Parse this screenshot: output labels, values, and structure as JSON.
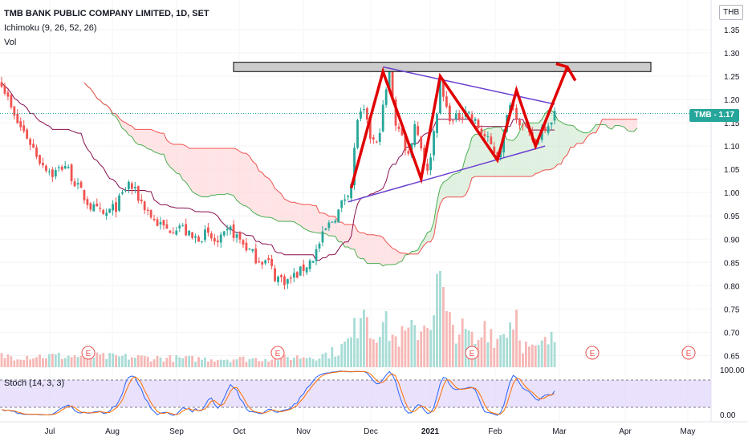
{
  "header": {
    "title": "TMB BANK PUBLIC COMPANY LIMITED, 1D, SET",
    "ichimoku_label": "Ichimoku (9, 26, 52, 26)",
    "volume_label": "Vol",
    "currency": "THB",
    "last_price_tag": "TMB - 1.17"
  },
  "stoch": {
    "label": "Stoch (14, 3, 3)",
    "ticks": [
      "100.00",
      "0.00"
    ]
  },
  "colors": {
    "up": "#26a69a",
    "down": "#ef5350",
    "conv_line": "#880e4f",
    "span_a": "#4caf50",
    "span_b": "#ef5350",
    "cloud_green": "#c8e6c9",
    "cloud_red": "#ffcdd2",
    "pattern": "#e00000",
    "trendline": "#6a3fcf",
    "stoch_band": "#e1d5fb",
    "stoch_k": "#2962ff",
    "stoch_d": "#ff6d00",
    "zone_fill": "#cccccc"
  },
  "chart_data": {
    "type": "candlestick",
    "ylim": [
      0.63,
      1.4
    ],
    "y_ticks": [
      1.35,
      1.3,
      1.25,
      1.2,
      1.15,
      1.1,
      1.05,
      1.0,
      0.95,
      0.9,
      0.85,
      0.8,
      0.75,
      0.7,
      0.65
    ],
    "x_ticks": [
      "Jul",
      "Aug",
      "Sep",
      "Oct",
      "Nov",
      "Dec",
      "2021",
      "Feb",
      "Mar",
      "Apr",
      "May"
    ],
    "last_price": 1.17,
    "close_path": [
      [
        0,
        1.24
      ],
      [
        4,
        1.16
      ],
      [
        8,
        1.12
      ],
      [
        12,
        1.07
      ],
      [
        16,
        1.04
      ],
      [
        20,
        1.06
      ],
      [
        24,
        1.01
      ],
      [
        28,
        0.97
      ],
      [
        32,
        0.95
      ],
      [
        36,
        0.97
      ],
      [
        40,
        1.02
      ],
      [
        44,
        0.98
      ],
      [
        48,
        0.94
      ],
      [
        52,
        0.92
      ],
      [
        56,
        0.93
      ],
      [
        60,
        0.9
      ],
      [
        64,
        0.91
      ],
      [
        68,
        0.89
      ],
      [
        72,
        0.92
      ],
      [
        76,
        0.89
      ],
      [
        80,
        0.86
      ],
      [
        84,
        0.85
      ],
      [
        86,
        0.82
      ],
      [
        90,
        0.81
      ],
      [
        94,
        0.83
      ],
      [
        98,
        0.86
      ],
      [
        102,
        0.92
      ],
      [
        106,
        0.96
      ],
      [
        108,
        0.99
      ],
      [
        110,
        1.02
      ],
      [
        112,
        1.16
      ],
      [
        114,
        1.17
      ],
      [
        116,
        1.12
      ],
      [
        118,
        1.1
      ],
      [
        120,
        1.18
      ],
      [
        122,
        1.26
      ],
      [
        124,
        1.15
      ],
      [
        126,
        1.12
      ],
      [
        128,
        1.08
      ],
      [
        130,
        1.15
      ],
      [
        132,
        1.1
      ],
      [
        134,
        1.04
      ],
      [
        136,
        1.13
      ],
      [
        138,
        1.23
      ],
      [
        140,
        1.18
      ],
      [
        142,
        1.15
      ],
      [
        146,
        1.18
      ],
      [
        150,
        1.14
      ],
      [
        154,
        1.1
      ],
      [
        156,
        1.08
      ],
      [
        158,
        1.12
      ],
      [
        160,
        1.2
      ],
      [
        162,
        1.17
      ],
      [
        164,
        1.14
      ],
      [
        166,
        1.12
      ],
      [
        168,
        1.11
      ],
      [
        170,
        1.14
      ],
      [
        172,
        1.15
      ],
      [
        174,
        1.17
      ]
    ],
    "volume_path": [
      [
        0,
        2
      ],
      [
        20,
        2
      ],
      [
        40,
        1.8
      ],
      [
        60,
        1.5
      ],
      [
        80,
        1.5
      ],
      [
        100,
        2
      ],
      [
        106,
        3
      ],
      [
        110,
        5
      ],
      [
        112,
        8
      ],
      [
        114,
        14
      ],
      [
        116,
        6
      ],
      [
        120,
        8
      ],
      [
        124,
        5
      ],
      [
        128,
        6
      ],
      [
        132,
        7
      ],
      [
        136,
        10
      ],
      [
        138,
        17
      ],
      [
        140,
        8
      ],
      [
        146,
        6
      ],
      [
        150,
        4
      ],
      [
        152,
        8
      ],
      [
        156,
        5
      ],
      [
        160,
        8
      ],
      [
        162,
        10
      ],
      [
        164,
        4
      ],
      [
        168,
        3
      ],
      [
        170,
        4
      ],
      [
        174,
        5
      ]
    ],
    "earnings_markers": 5,
    "annotations": {
      "resistance_zone": [
        1.26,
        1.28
      ],
      "upper_trendline": [
        [
          120,
          1.27
        ],
        [
          174,
          1.19
        ]
      ],
      "lower_trendline": [
        [
          109,
          0.98
        ],
        [
          171,
          1.1
        ]
      ],
      "zigzag": [
        [
          110,
          1.01
        ],
        [
          120,
          1.26
        ],
        [
          132,
          1.03
        ],
        [
          138,
          1.25
        ],
        [
          156,
          1.07
        ],
        [
          162,
          1.22
        ],
        [
          168,
          1.1
        ],
        [
          178,
          1.27
        ]
      ]
    }
  }
}
